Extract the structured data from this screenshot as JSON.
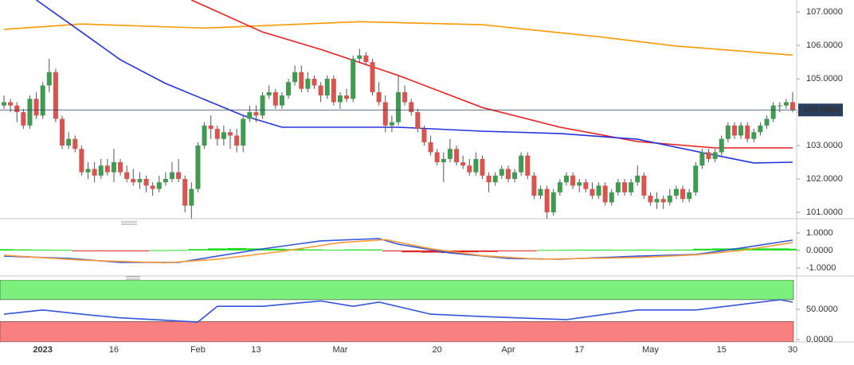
{
  "chart_data": [
    {
      "type": "candlestick",
      "ylim": [
        100.81,
        107.36
      ],
      "yticks": [
        {
          "value": 107,
          "label": "107.0000"
        },
        {
          "value": 106,
          "label": "106.0000"
        },
        {
          "value": 105,
          "label": "105.0000"
        },
        {
          "value": 104,
          "label": "104.0000"
        },
        {
          "value": 103,
          "label": "103.0000"
        },
        {
          "value": 102,
          "label": "102.0000"
        },
        {
          "value": 101,
          "label": "101.0000"
        }
      ],
      "up_color": "#3f9a52",
      "down_color": "#d9534f",
      "categories": [
        null,
        null,
        null,
        null,
        null,
        null,
        "2023",
        null,
        null,
        null,
        null,
        null,
        null,
        null,
        null,
        null,
        null,
        "16",
        null,
        null,
        null,
        null,
        null,
        null,
        null,
        null,
        null,
        null,
        null,
        null,
        "Feb",
        null,
        null,
        null,
        null,
        null,
        null,
        null,
        null,
        "13",
        null,
        null,
        null,
        null,
        null,
        null,
        null,
        null,
        null,
        null,
        null,
        null,
        "Mar",
        null,
        null,
        null,
        null,
        null,
        null,
        null,
        null,
        null,
        null,
        null,
        null,
        null,
        null,
        "20",
        null,
        null,
        null,
        null,
        null,
        null,
        null,
        null,
        null,
        null,
        "Apr",
        null,
        null,
        null,
        null,
        null,
        null,
        null,
        null,
        null,
        null,
        "17",
        null,
        null,
        null,
        null,
        null,
        null,
        null,
        null,
        null,
        null,
        "May",
        null,
        null,
        null,
        null,
        null,
        null,
        null,
        null,
        null,
        null,
        "15",
        null,
        null,
        null,
        null,
        null,
        null,
        null,
        null,
        null,
        null,
        "30"
      ],
      "candles": [
        [
          104.2,
          104.5,
          104.1,
          104.3
        ],
        [
          104.3,
          104.4,
          104.0,
          104.2
        ],
        [
          104.2,
          104.3,
          103.7,
          104.0
        ],
        [
          104.0,
          104.1,
          103.5,
          103.6
        ],
        [
          103.6,
          104.5,
          103.5,
          104.4
        ],
        [
          104.4,
          104.6,
          103.8,
          103.9
        ],
        [
          103.9,
          104.9,
          103.8,
          104.8
        ],
        [
          104.8,
          105.6,
          104.6,
          105.2
        ],
        [
          105.2,
          105.3,
          103.7,
          103.8
        ],
        [
          103.8,
          103.9,
          102.9,
          103.0
        ],
        [
          103.0,
          103.4,
          102.9,
          103.2
        ],
        [
          103.2,
          103.3,
          102.8,
          102.9
        ],
        [
          102.9,
          103.0,
          102.1,
          102.2
        ],
        [
          102.2,
          102.5,
          102.0,
          102.3
        ],
        [
          102.3,
          102.5,
          101.9,
          102.1
        ],
        [
          102.1,
          102.6,
          102.0,
          102.4
        ],
        [
          102.4,
          102.6,
          102.1,
          102.2
        ],
        [
          102.2,
          102.9,
          101.9,
          102.5
        ],
        [
          102.5,
          102.6,
          102.1,
          102.2
        ],
        [
          102.2,
          102.4,
          101.9,
          102.0
        ],
        [
          102.0,
          102.3,
          101.8,
          101.9
        ],
        [
          101.9,
          102.2,
          101.7,
          102.0
        ],
        [
          102.0,
          102.1,
          101.6,
          101.8
        ],
        [
          101.8,
          101.9,
          101.5,
          101.7
        ],
        [
          101.7,
          102.1,
          101.6,
          101.9
        ],
        [
          101.9,
          102.2,
          101.8,
          102.0
        ],
        [
          102.0,
          102.5,
          101.9,
          102.2
        ],
        [
          102.2,
          102.6,
          101.9,
          102.0
        ],
        [
          102.0,
          102.1,
          101.0,
          101.2
        ],
        [
          101.2,
          101.9,
          100.8,
          101.7
        ],
        [
          101.7,
          103.1,
          101.6,
          103.0
        ],
        [
          103.0,
          103.7,
          102.9,
          103.6
        ],
        [
          103.6,
          103.9,
          103.2,
          103.5
        ],
        [
          103.5,
          103.6,
          103.0,
          103.2
        ],
        [
          103.2,
          103.6,
          103.0,
          103.4
        ],
        [
          103.4,
          103.5,
          102.9,
          103.3
        ],
        [
          103.3,
          103.5,
          102.8,
          103.0
        ],
        [
          103.0,
          103.9,
          102.8,
          103.8
        ],
        [
          103.8,
          104.2,
          103.7,
          104.0
        ],
        [
          104.0,
          104.2,
          103.7,
          103.9
        ],
        [
          103.9,
          104.6,
          103.8,
          104.5
        ],
        [
          104.5,
          104.8,
          104.4,
          104.6
        ],
        [
          104.6,
          104.7,
          104.1,
          104.2
        ],
        [
          104.2,
          104.6,
          104.1,
          104.5
        ],
        [
          104.5,
          105.0,
          104.4,
          104.9
        ],
        [
          104.9,
          105.4,
          104.8,
          105.2
        ],
        [
          105.2,
          105.4,
          104.6,
          104.7
        ],
        [
          104.7,
          105.2,
          104.6,
          105.0
        ],
        [
          105.0,
          105.1,
          104.7,
          104.8
        ],
        [
          104.8,
          104.9,
          104.3,
          104.5
        ],
        [
          104.5,
          105.1,
          104.4,
          105.0
        ],
        [
          105.0,
          105.1,
          104.2,
          104.3
        ],
        [
          104.3,
          104.6,
          104.1,
          104.5
        ],
        [
          104.5,
          104.7,
          104.3,
          104.4
        ],
        [
          104.4,
          105.7,
          104.3,
          105.6
        ],
        [
          105.6,
          105.9,
          105.5,
          105.7
        ],
        [
          105.7,
          105.8,
          105.4,
          105.5
        ],
        [
          105.5,
          105.6,
          104.5,
          104.6
        ],
        [
          104.6,
          104.9,
          104.2,
          104.3
        ],
        [
          104.3,
          104.5,
          103.4,
          103.6
        ],
        [
          103.6,
          103.9,
          103.4,
          103.7
        ],
        [
          103.7,
          105.1,
          103.6,
          104.6
        ],
        [
          104.6,
          104.8,
          104.2,
          104.3
        ],
        [
          104.3,
          104.4,
          103.9,
          104.0
        ],
        [
          104.0,
          104.1,
          103.4,
          103.5
        ],
        [
          103.5,
          103.6,
          103.0,
          103.1
        ],
        [
          103.1,
          103.3,
          102.7,
          102.8
        ],
        [
          102.8,
          102.9,
          102.4,
          102.5
        ],
        [
          102.5,
          102.8,
          101.9,
          102.6
        ],
        [
          102.6,
          103.2,
          102.5,
          102.9
        ],
        [
          102.9,
          103.0,
          102.4,
          102.5
        ],
        [
          102.5,
          102.7,
          102.3,
          102.4
        ],
        [
          102.4,
          102.6,
          102.1,
          102.2
        ],
        [
          102.2,
          102.8,
          102.1,
          102.6
        ],
        [
          102.6,
          102.7,
          102.0,
          102.1
        ],
        [
          102.1,
          102.2,
          101.6,
          101.9
        ],
        [
          101.9,
          102.2,
          101.8,
          102.1
        ],
        [
          102.1,
          102.4,
          102.0,
          102.3
        ],
        [
          102.3,
          102.4,
          101.9,
          102.0
        ],
        [
          102.0,
          102.3,
          101.9,
          102.2
        ],
        [
          102.2,
          102.8,
          102.1,
          102.7
        ],
        [
          102.7,
          102.8,
          102.0,
          102.1
        ],
        [
          102.1,
          102.2,
          101.4,
          101.5
        ],
        [
          101.5,
          101.8,
          101.4,
          101.7
        ],
        [
          101.7,
          101.8,
          100.8,
          101.0
        ],
        [
          101.0,
          101.7,
          100.9,
          101.6
        ],
        [
          101.6,
          102.0,
          101.5,
          101.9
        ],
        [
          101.9,
          102.2,
          101.8,
          102.1
        ],
        [
          102.1,
          102.2,
          101.7,
          101.8
        ],
        [
          101.8,
          102.0,
          101.6,
          101.9
        ],
        [
          101.9,
          102.0,
          101.6,
          101.7
        ],
        [
          101.7,
          101.9,
          101.4,
          101.5
        ],
        [
          101.5,
          101.9,
          101.4,
          101.8
        ],
        [
          101.8,
          101.9,
          101.2,
          101.3
        ],
        [
          101.3,
          101.7,
          101.2,
          101.6
        ],
        [
          101.6,
          102.0,
          101.5,
          101.9
        ],
        [
          101.9,
          102.0,
          101.5,
          101.6
        ],
        [
          101.6,
          102.0,
          101.5,
          101.9
        ],
        [
          101.9,
          102.4,
          101.8,
          102.1
        ],
        [
          102.1,
          102.2,
          101.4,
          101.5
        ],
        [
          101.5,
          101.6,
          101.2,
          101.3
        ],
        [
          101.3,
          101.6,
          101.1,
          101.4
        ],
        [
          101.4,
          101.5,
          101.1,
          101.3
        ],
        [
          101.3,
          101.7,
          101.2,
          101.5
        ],
        [
          101.5,
          101.8,
          101.4,
          101.7
        ],
        [
          101.7,
          101.8,
          101.3,
          101.4
        ],
        [
          101.4,
          101.7,
          101.3,
          101.6
        ],
        [
          101.6,
          102.5,
          101.5,
          102.4
        ],
        [
          102.4,
          102.9,
          102.3,
          102.8
        ],
        [
          102.8,
          102.9,
          102.5,
          102.6
        ],
        [
          102.6,
          102.9,
          102.5,
          102.8
        ],
        [
          102.8,
          103.3,
          102.7,
          103.2
        ],
        [
          103.2,
          103.7,
          103.1,
          103.6
        ],
        [
          103.6,
          103.7,
          103.2,
          103.3
        ],
        [
          103.3,
          103.7,
          103.2,
          103.6
        ],
        [
          103.6,
          103.7,
          103.1,
          103.2
        ],
        [
          103.2,
          103.5,
          103.1,
          103.4
        ],
        [
          103.4,
          103.7,
          103.3,
          103.6
        ],
        [
          103.6,
          103.9,
          103.5,
          103.8
        ],
        [
          103.8,
          104.3,
          103.7,
          104.2
        ],
        [
          104.2,
          104.3,
          104.0,
          104.2
        ],
        [
          104.2,
          104.4,
          104.1,
          104.3
        ],
        [
          104.3,
          104.6,
          104.0,
          104.0664
        ]
      ],
      "price_line_color": "#2a3f5f",
      "lines": [
        {
          "color": "#ff9900",
          "x": [
            0,
            12,
            31,
            55,
            74,
            92,
            104,
            122
          ],
          "values": [
            106.48,
            106.64,
            106.52,
            106.71,
            106.62,
            106.26,
            105.98,
            105.71
          ]
        },
        {
          "color": "#ee1c1c",
          "x": [
            29,
            40,
            49,
            61,
            74,
            86,
            98,
            110,
            122
          ],
          "values": [
            107.36,
            106.4,
            105.88,
            105.1,
            104.14,
            103.55,
            103.12,
            102.93,
            102.93
          ]
        },
        {
          "color": "#2233dd",
          "x": [
            5,
            12,
            18,
            25,
            31,
            37,
            43,
            49,
            61,
            74,
            86,
            98,
            110,
            116,
            122
          ],
          "values": [
            107.36,
            106.4,
            105.57,
            104.86,
            104.38,
            103.9,
            103.55,
            103.55,
            103.55,
            103.43,
            103.36,
            103.19,
            102.71,
            102.48,
            102.5
          ]
        }
      ]
    },
    {
      "type": "macd",
      "ylim": [
        -1.45,
        1.36
      ],
      "yticks": [
        {
          "value": 1,
          "label": "1.0000"
        },
        {
          "value": 0,
          "label": "0.0000"
        },
        {
          "value": -1,
          "label": "-1.0000"
        }
      ],
      "lines": [
        {
          "color": "#3355dd",
          "x": [
            0,
            10,
            18,
            27,
            33,
            40,
            49,
            58,
            61,
            69,
            78,
            86,
            98,
            107,
            114,
            122
          ],
          "values": [
            -0.32,
            -0.45,
            -0.68,
            -0.68,
            -0.32,
            0.09,
            0.55,
            0.68,
            0.36,
            -0.14,
            -0.45,
            -0.5,
            -0.32,
            -0.23,
            0.14,
            0.59
          ]
        },
        {
          "color": "#ff9933",
          "x": [
            0,
            12,
            25,
            33,
            43,
            52,
            59,
            66,
            74,
            83,
            98,
            107,
            114,
            122
          ],
          "values": [
            -0.27,
            -0.55,
            -0.7,
            -0.5,
            -0.05,
            0.45,
            0.62,
            0.1,
            -0.3,
            -0.5,
            -0.4,
            -0.25,
            0.0,
            0.45
          ]
        }
      ],
      "histogram": {
        "up_color": "#22dd22",
        "down_color": "#dd2222",
        "x": [
          0,
          3,
          6,
          9,
          12,
          15,
          18,
          21,
          24,
          27,
          30,
          33,
          36,
          39,
          42,
          45,
          48,
          51,
          54,
          57,
          60,
          63,
          66,
          69,
          72,
          75,
          78,
          81,
          84,
          87,
          90,
          93,
          96,
          99,
          102,
          105,
          108,
          111,
          114,
          117,
          120,
          122
        ],
        "values": [
          0.08,
          0.06,
          0.05,
          0.04,
          -0.03,
          -0.04,
          -0.02,
          -0.02,
          0.02,
          0.03,
          0.08,
          0.12,
          0.14,
          0.12,
          0.1,
          0.08,
          0.06,
          0.04,
          0.06,
          0.06,
          -0.05,
          -0.1,
          -0.12,
          -0.14,
          -0.1,
          -0.08,
          -0.04,
          -0.03,
          0.03,
          0.04,
          0.05,
          0.05,
          0.04,
          0.05,
          0.04,
          0.05,
          0.1,
          0.12,
          0.13,
          0.12,
          0.12,
          0.1
        ]
      }
    },
    {
      "type": "rsi",
      "ylim": [
        -3.9,
        98.7
      ],
      "yticks": [
        {
          "value": 50,
          "label": "50.0000"
        },
        {
          "value": 0,
          "label": "0.0000"
        }
      ],
      "bands": [
        {
          "range": [
            66,
            98.7
          ],
          "color": "#7cf07c"
        },
        {
          "range": [
            -3.9,
            30
          ],
          "color": "#f88080"
        }
      ],
      "lines": [
        {
          "color": "#3355dd",
          "x": [
            0,
            6,
            12,
            18,
            25,
            30,
            33,
            40,
            49,
            54,
            58,
            66,
            74,
            87,
            98,
            107,
            114,
            120,
            122
          ],
          "values": [
            42,
            49,
            42,
            36,
            32,
            29,
            55,
            55,
            64,
            55,
            62,
            42,
            38,
            33,
            49,
            49,
            58,
            66,
            62
          ]
        }
      ]
    }
  ]
}
